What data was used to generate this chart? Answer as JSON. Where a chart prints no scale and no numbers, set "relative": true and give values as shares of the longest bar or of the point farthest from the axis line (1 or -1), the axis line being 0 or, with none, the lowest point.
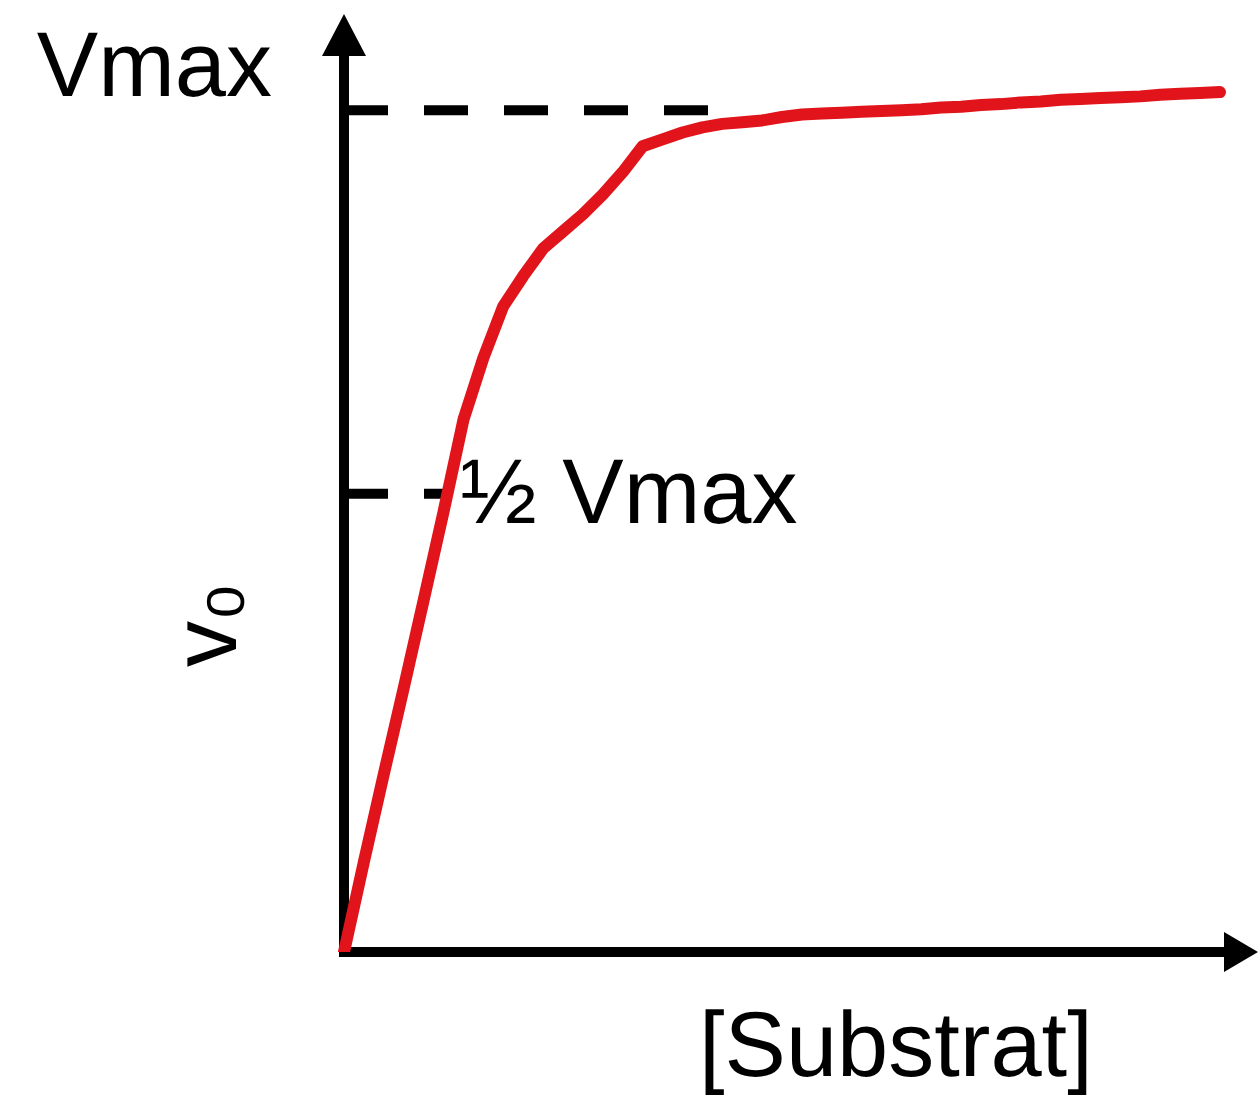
{
  "chart_data": {
    "type": "line",
    "xlabel": "[Substrat]",
    "ylabel": "v₀",
    "relative": true,
    "marker": "none",
    "categories": [
      null,
      null,
      null,
      null,
      null,
      null,
      null,
      null,
      null,
      null,
      null,
      null,
      null,
      null,
      null,
      null,
      null,
      null,
      null,
      null,
      null,
      null,
      null,
      null,
      null,
      null,
      null,
      null,
      null,
      null,
      null,
      null,
      null,
      null,
      null,
      null,
      null,
      null,
      null,
      null,
      null,
      null,
      null,
      null,
      null
    ],
    "series": [
      {
        "color": "#e0141a",
        "values": [
          0,
          0.105,
          0.207,
          0.307,
          0.409,
          0.512,
          0.619,
          0.691,
          0.751,
          0.786,
          0.818,
          0.838,
          0.858,
          0.881,
          0.907,
          0.937,
          0.945,
          0.953,
          0.959,
          0.963,
          0.965,
          0.967,
          0.971,
          0.974,
          0.975,
          0.976,
          0.977,
          0.978,
          0.979,
          0.98,
          0.982,
          0.983,
          0.985,
          0.986,
          0.988,
          0.989,
          0.991,
          0.992,
          0.993,
          0.994,
          0.995,
          0.997,
          0.998,
          0.999,
          1
        ]
      }
    ],
    "ref_lines": [
      {
        "axis": "y",
        "value": 0.979,
        "label": "Vmax",
        "color": "#000000",
        "line_style": "dashed"
      },
      {
        "axis": "y",
        "value": 0.533,
        "label": "½ Vmax",
        "color": "#000000",
        "line_style": "dashed"
      }
    ]
  }
}
